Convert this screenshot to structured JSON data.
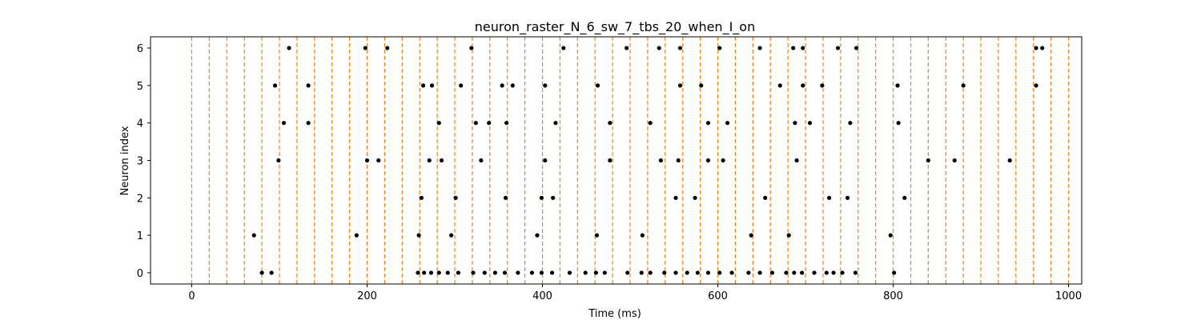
{
  "chart_data": {
    "type": "scatter",
    "title": "neuron_raster_N_6_sw_7_tbs_20_when_I_on",
    "xlabel": "Time (ms)",
    "ylabel": "Neuron index",
    "xlim": [
      -47,
      1015
    ],
    "ylim": [
      -0.3,
      6.3
    ],
    "xticks": [
      0,
      200,
      400,
      600,
      800,
      1000
    ],
    "yticks": [
      0,
      1,
      2,
      3,
      4,
      5,
      6
    ],
    "grid": false,
    "legend": "none",
    "colors": {
      "spike": "#000000",
      "vline": "#ff7f0e",
      "frame": "#000000"
    },
    "vlines": {
      "x": [
        0,
        20,
        40,
        60,
        80,
        100,
        120,
        140,
        160,
        180,
        200,
        220,
        240,
        260,
        280,
        300,
        320,
        340,
        360,
        380,
        400,
        420,
        440,
        460,
        480,
        500,
        520,
        540,
        560,
        580,
        600,
        620,
        640,
        660,
        680,
        700,
        720,
        740,
        760,
        780,
        800,
        820,
        840,
        860,
        880,
        900,
        920,
        940,
        960,
        980,
        1000
      ],
      "style": "dashed"
    },
    "spikes": [
      {
        "neuron": 6,
        "times": [
          111,
          198,
          223,
          319,
          424,
          496,
          533,
          557,
          602,
          648,
          686,
          697,
          737,
          758,
          963,
          970
        ]
      },
      {
        "neuron": 5,
        "times": [
          95,
          133,
          264,
          274,
          307,
          354,
          366,
          403,
          463,
          557,
          581,
          671,
          697,
          719,
          805,
          880,
          963
        ]
      },
      {
        "neuron": 4,
        "times": [
          105,
          133,
          282,
          324,
          339,
          359,
          415,
          477,
          523,
          589,
          611,
          688,
          705,
          751,
          806
        ]
      },
      {
        "neuron": 3,
        "times": [
          99,
          200,
          213,
          271,
          285,
          330,
          403,
          477,
          535,
          555,
          589,
          606,
          690,
          840,
          870,
          933
        ]
      },
      {
        "neuron": 2,
        "times": [
          262,
          301,
          358,
          399,
          412,
          552,
          574,
          654,
          727,
          748,
          813
        ]
      },
      {
        "neuron": 1,
        "times": [
          71,
          188,
          259,
          296,
          394,
          462,
          514,
          638,
          681,
          797
        ]
      },
      {
        "neuron": 0,
        "times": [
          80,
          91,
          258,
          265,
          273,
          282,
          292,
          304,
          321,
          334,
          346,
          357,
          372,
          388,
          399,
          411,
          431,
          449,
          461,
          471,
          497,
          513,
          523,
          539,
          552,
          565,
          577,
          589,
          602,
          616,
          635,
          648,
          662,
          678,
          687,
          696,
          710,
          724,
          732,
          742,
          757,
          801
        ]
      }
    ]
  }
}
